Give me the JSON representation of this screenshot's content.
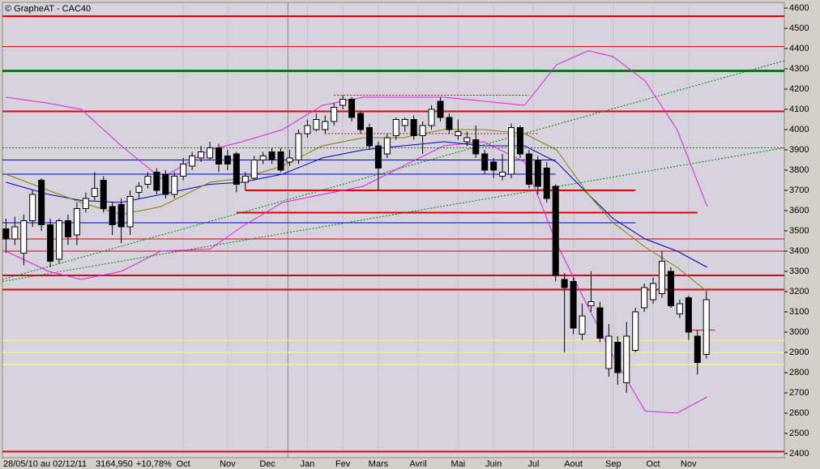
{
  "chart_data": {
    "type": "candlestick",
    "title": "© GrapheAT - CAC40",
    "footer": [
      "28/05/10 au 02/12/11",
      "3164,950",
      "+10,78%"
    ],
    "xlim": [
      -0.4,
      87.8
    ],
    "ylim": [
      2400,
      4600
    ],
    "yticks": [
      2400,
      2500,
      2600,
      2700,
      2800,
      2900,
      3000,
      3100,
      3200,
      3300,
      3400,
      3500,
      3600,
      3700,
      3800,
      3900,
      4000,
      4100,
      4200,
      4300,
      4400,
      4500,
      4600
    ],
    "xticks": [
      {
        "value": 20,
        "label": "Oct"
      },
      {
        "value": 25,
        "label": "Nov"
      },
      {
        "value": 29.5,
        "label": "Dec"
      },
      {
        "value": 34,
        "label": "Jan"
      },
      {
        "value": 38,
        "label": "Fev"
      },
      {
        "value": 42,
        "label": "Mars"
      },
      {
        "value": 46.5,
        "label": "Avril"
      },
      {
        "value": 51,
        "label": "Mai"
      },
      {
        "value": 55,
        "label": "Juin"
      },
      {
        "value": 59.5,
        "label": "Jul"
      },
      {
        "value": 64,
        "label": "Aout"
      },
      {
        "value": 68.5,
        "label": "Sep"
      },
      {
        "value": 73,
        "label": "Oct"
      },
      {
        "value": 77,
        "label": "Nov"
      }
    ],
    "year_line": 31.8,
    "open": [
      3510,
      3460,
      3390,
      3550,
      3750,
      3530,
      3360,
      3550,
      3480,
      3610,
      3670,
      3750,
      3620,
      3630,
      3520,
      3690,
      3730,
      3790,
      3780,
      3680,
      3770,
      3820,
      3860,
      3860,
      3910,
      3870,
      3880,
      3740,
      3760,
      3850,
      3890,
      3890,
      3840,
      3850,
      3980,
      4000,
      4000,
      4040,
      4120,
      4150,
      4080,
      4010,
      3920,
      3880,
      3970,
      4020,
      4050,
      3970,
      4020,
      4140,
      4060,
      3970,
      3940,
      3950,
      3880,
      3840,
      3770,
      3780,
      4010,
      3880,
      3850,
      3810,
      3720,
      3260,
      3250,
      2990,
      3130,
      3120,
      2820,
      2950,
      2750,
      2910,
      3120,
      3160,
      3190,
      3300,
      3090,
      3170,
      2980,
      2890
    ],
    "high": [
      3560,
      3570,
      3580,
      3700,
      3760,
      3560,
      3560,
      3580,
      3640,
      3690,
      3790,
      3770,
      3640,
      3660,
      3700,
      3740,
      3790,
      3810,
      3800,
      3790,
      3860,
      3890,
      3920,
      3940,
      3930,
      3900,
      3890,
      3790,
      3870,
      3890,
      3910,
      3910,
      3900,
      4000,
      4050,
      4080,
      4070,
      4130,
      4170,
      4160,
      4090,
      4030,
      3940,
      3980,
      4060,
      4060,
      4070,
      4040,
      4120,
      4160,
      4080,
      4050,
      3990,
      4020,
      3900,
      3860,
      3880,
      4030,
      4020,
      3900,
      3870,
      3840,
      3730,
      3290,
      3270,
      3140,
      3300,
      3150,
      3040,
      2980,
      3050,
      3120,
      3240,
      3270,
      3400,
      3320,
      3160,
      3180,
      3010,
      3200
    ],
    "low": [
      3390,
      3430,
      3330,
      3520,
      3500,
      3320,
      3340,
      3430,
      3430,
      3590,
      3650,
      3590,
      3480,
      3440,
      3480,
      3660,
      3710,
      3680,
      3660,
      3660,
      3750,
      3800,
      3840,
      3850,
      3790,
      3800,
      3690,
      3700,
      3750,
      3830,
      3830,
      3790,
      3820,
      3830,
      3960,
      3990,
      3980,
      4020,
      4100,
      4040,
      3980,
      3900,
      3700,
      3860,
      3950,
      3990,
      3950,
      3880,
      4000,
      4040,
      3980,
      3950,
      3920,
      3860,
      3780,
      3760,
      3750,
      3760,
      3860,
      3710,
      3680,
      3640,
      3250,
      2900,
      2990,
      2960,
      3100,
      2950,
      2780,
      2740,
      2700,
      2900,
      3100,
      3140,
      3170,
      3120,
      3070,
      2960,
      2790,
      2870
    ],
    "close": [
      3460,
      3520,
      3550,
      3680,
      3530,
      3350,
      3550,
      3470,
      3610,
      3660,
      3710,
      3610,
      3530,
      3520,
      3670,
      3720,
      3770,
      3700,
      3680,
      3770,
      3830,
      3870,
      3890,
      3910,
      3830,
      3830,
      3730,
      3770,
      3850,
      3870,
      3850,
      3800,
      3860,
      3980,
      4020,
      4050,
      4040,
      4110,
      4150,
      4060,
      4000,
      3920,
      3810,
      3960,
      4050,
      4050,
      3970,
      4020,
      4100,
      4060,
      4000,
      3990,
      3960,
      3880,
      3800,
      3800,
      3790,
      4010,
      3880,
      3730,
      3720,
      3660,
      3280,
      3220,
      3020,
      3080,
      3150,
      2970,
      2980,
      2800,
      2980,
      3100,
      3220,
      3240,
      3350,
      3130,
      3140,
      3000,
      2850,
      3160
    ],
    "curves": [
      {
        "color": "#e020e0",
        "x": [
          0,
          4.8,
          8.5,
          13,
          17.5,
          23,
          26.6,
          31.2,
          35.7,
          40.3,
          44.8,
          49.4,
          53.9,
          58.5,
          62.1,
          65.7,
          68.5,
          72.1,
          75.7,
          79.1
        ],
        "values": [
          4160,
          4130,
          4100,
          3920,
          3760,
          3900,
          3940,
          4000,
          4120,
          4160,
          4160,
          4160,
          4140,
          4120,
          4320,
          4390,
          4360,
          4240,
          4000,
          3620
        ]
      },
      {
        "color": "#e020e0",
        "x": [
          0,
          4.8,
          8.5,
          13,
          17.5,
          23,
          26.6,
          31.2,
          35.7,
          40.3,
          44.8,
          49.4,
          53.9,
          58.5,
          62.1,
          65.7,
          68.5,
          72.1,
          75.7,
          79.1
        ],
        "values": [
          3400,
          3300,
          3260,
          3300,
          3400,
          3410,
          3520,
          3640,
          3680,
          3720,
          3820,
          3920,
          3940,
          3840,
          3440,
          3120,
          2880,
          2610,
          2600,
          2680
        ]
      },
      {
        "color": "#0000c0",
        "x": [
          0,
          4.8,
          8.5,
          13,
          17.5,
          23,
          26.6,
          31.2,
          35.7,
          40.3,
          44.8,
          49.4,
          53.9,
          58.5,
          62.1,
          65.7,
          68.5,
          72.1,
          75.7,
          79.1
        ],
        "values": [
          3740,
          3680,
          3650,
          3640,
          3680,
          3730,
          3740,
          3780,
          3860,
          3900,
          3920,
          3940,
          3920,
          3920,
          3840,
          3680,
          3560,
          3460,
          3400,
          3320
        ]
      },
      {
        "color": "#808000",
        "x": [
          0,
          4.8,
          8.5,
          13,
          17.5,
          23,
          26.6,
          31.2,
          35.7,
          40.3,
          44.8,
          49.4,
          53.9,
          58.5,
          62.1,
          65.7,
          68.5,
          72.1,
          75.7,
          79.1
        ],
        "values": [
          3780,
          3700,
          3640,
          3580,
          3620,
          3740,
          3760,
          3820,
          3920,
          3960,
          3960,
          4000,
          4000,
          3980,
          3900,
          3680,
          3540,
          3420,
          3320,
          3200
        ]
      }
    ],
    "levels": [
      {
        "value": 4560,
        "color": "#e00000",
        "width": 2
      },
      {
        "value": 4410,
        "color": "#e00000",
        "width": 1
      },
      {
        "value": 4290,
        "color": "#008000",
        "width": 3
      },
      {
        "value": 4090,
        "color": "#e00000",
        "width": 2
      },
      {
        "value": 3910,
        "color": "#008000",
        "width": 1,
        "dash": true
      },
      {
        "value": 3850,
        "color": "#0000c0",
        "width": 1,
        "to": 62
      },
      {
        "value": 3780,
        "color": "#0000c0",
        "width": 1,
        "to": 62
      },
      {
        "value": 4170,
        "color": "#e00000",
        "width": 1,
        "from": 37,
        "to": 59,
        "dash": true
      },
      {
        "value": 3980,
        "color": "#e00000",
        "width": 1,
        "from": 36,
        "to": 60,
        "dash": true
      },
      {
        "value": 3700,
        "color": "#e00000",
        "width": 2,
        "from": 27,
        "to": 71
      },
      {
        "value": 3590,
        "color": "#e00000",
        "width": 2,
        "from": 26,
        "to": 78
      },
      {
        "value": 3540,
        "color": "#0000c0",
        "width": 1,
        "to": 71
      },
      {
        "value": 3460,
        "color": "#e00000",
        "width": 1
      },
      {
        "value": 3400,
        "color": "#e00000",
        "width": 1
      },
      {
        "value": 3280,
        "color": "#e00000",
        "width": 2
      },
      {
        "value": 3210,
        "color": "#e00000",
        "width": 2
      },
      {
        "value": 3010,
        "color": "#e00000",
        "width": 1,
        "from": 77,
        "to": 80
      },
      {
        "value": 2960,
        "color": "#ffff66",
        "width": 1
      },
      {
        "value": 2900,
        "color": "#ffff66",
        "width": 1
      },
      {
        "value": 2840,
        "color": "#ffff66",
        "width": 1
      },
      {
        "value": 2410,
        "color": "#e00000",
        "width": 2
      }
    ],
    "trendlines": [
      {
        "color": "#008000",
        "x": [
          -0.4,
          87.8
        ],
        "values": [
          3260,
          4340
        ]
      },
      {
        "color": "#008000",
        "x": [
          -0.4,
          87.8
        ],
        "values": [
          3250,
          3910
        ]
      }
    ]
  }
}
